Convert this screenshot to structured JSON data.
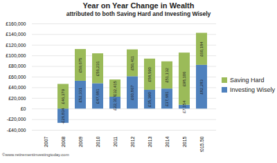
{
  "chart_data": {
    "type": "bar",
    "title": "Year on Year Change in Wealth",
    "subtitle": "attributed to both Saving Hard and Investing Wisely",
    "caption": "©www.retirementinvestingtoday.com",
    "categories": [
      "2007",
      "2008",
      "2009",
      "2010",
      "2011",
      "2012",
      "2013",
      "2014",
      "2015",
      "2015.50"
    ],
    "series": [
      {
        "name": "Investing Wisely",
        "color": "#4f81bd",
        "values": [
          null,
          -26834,
          52331,
          47681,
          22317,
          60867,
          35390,
          37681,
          7154,
          82283
        ],
        "value_labels": [
          null,
          "-£26,834",
          "£52,331",
          "£47,681",
          "£22,317",
          "£60,867",
          "£35,390",
          "£37,681",
          "£7,154",
          "£82,283"
        ]
      },
      {
        "name": "Saving Hard",
        "color": "#9bbb59",
        "values": [
          null,
          46379,
          59675,
          56231,
          32415,
          50411,
          58590,
          51132,
          98106,
          60184
        ],
        "value_labels": [
          null,
          "£46,379",
          "£59,675",
          "£56,231",
          "£32,415",
          "£50,411",
          "£58,590",
          "£51,132",
          "£98,106",
          "£60,184"
        ]
      }
    ],
    "stacked": true,
    "data_labels": true,
    "grid": true,
    "legend": "right",
    "ylim": [
      -40000,
      160000
    ],
    "yticks": [
      {
        "value": -40000,
        "label": "-£40,000"
      },
      {
        "value": -20000,
        "label": "-£20,000"
      },
      {
        "value": 0,
        "label": "£0"
      },
      {
        "value": 20000,
        "label": "£20,000"
      },
      {
        "value": 40000,
        "label": "£40,000"
      },
      {
        "value": 60000,
        "label": "£60,000"
      },
      {
        "value": 80000,
        "label": "£80,000"
      },
      {
        "value": 100000,
        "label": "£100,000"
      },
      {
        "value": 120000,
        "label": "£120,000"
      },
      {
        "value": 140000,
        "label": "£140,000"
      },
      {
        "value": 160000,
        "label": "£160,000"
      }
    ]
  }
}
